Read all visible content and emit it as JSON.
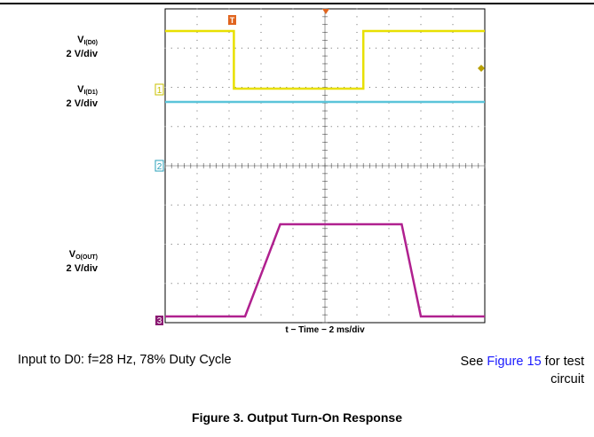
{
  "chart_data": {
    "type": "line",
    "xlabel": "t − Time − 2 ms/div",
    "traces": [
      {
        "channel_marker": "1",
        "label_main": "V",
        "label_sub": "I(D0)",
        "label_scale": "2 V/div",
        "color": "#e8e000",
        "points": [
          [
            0,
            1.0
          ],
          [
            2.15,
            1.0
          ],
          [
            2.15,
            0.0
          ],
          [
            6.2,
            0.0
          ],
          [
            6.2,
            1.0
          ],
          [
            10,
            1.0
          ]
        ]
      },
      {
        "channel_marker": "2",
        "label_main": "V",
        "label_sub": "I(D1)",
        "label_scale": "2 V/div",
        "color": "#5bc4d9",
        "points": [
          [
            0,
            1.0
          ],
          [
            10,
            1.0
          ]
        ]
      },
      {
        "channel_marker": "3",
        "label_main": "V",
        "label_sub": "O(OUT)",
        "label_scale": "2 V/div",
        "color": "#b0208f",
        "points": [
          [
            0,
            0.0
          ],
          [
            2.5,
            0.0
          ],
          [
            3.6,
            1.0
          ],
          [
            7.4,
            1.0
          ],
          [
            8.0,
            0.0
          ],
          [
            10,
            0.0
          ]
        ]
      }
    ],
    "divisions": {
      "x": 10,
      "y": 8
    },
    "trigger_marker": "T",
    "trigger_color": "#e0641e"
  },
  "labels": {
    "trace1_main": "V",
    "trace1_sub": "I(D0)",
    "trace1_scale": "2 V/div",
    "trace2_main": "V",
    "trace2_sub": "I(D1)",
    "trace2_scale": "2 V/div",
    "trace3_main": "V",
    "trace3_sub": "O(OUT)",
    "trace3_scale": "2 V/div",
    "ch1": "1",
    "ch2": "2",
    "ch3": "3",
    "trigger": "T"
  },
  "text": {
    "xlabel": "t − Time − 2 ms/div",
    "condition": "Input to D0: f=28 Hz, 78% Duty Cycle",
    "see_prefix": "See ",
    "see_link": "Figure 15",
    "see_suffix": " for test",
    "see_line2": "circuit",
    "caption": "Figure 3. Output Turn-On Response"
  }
}
